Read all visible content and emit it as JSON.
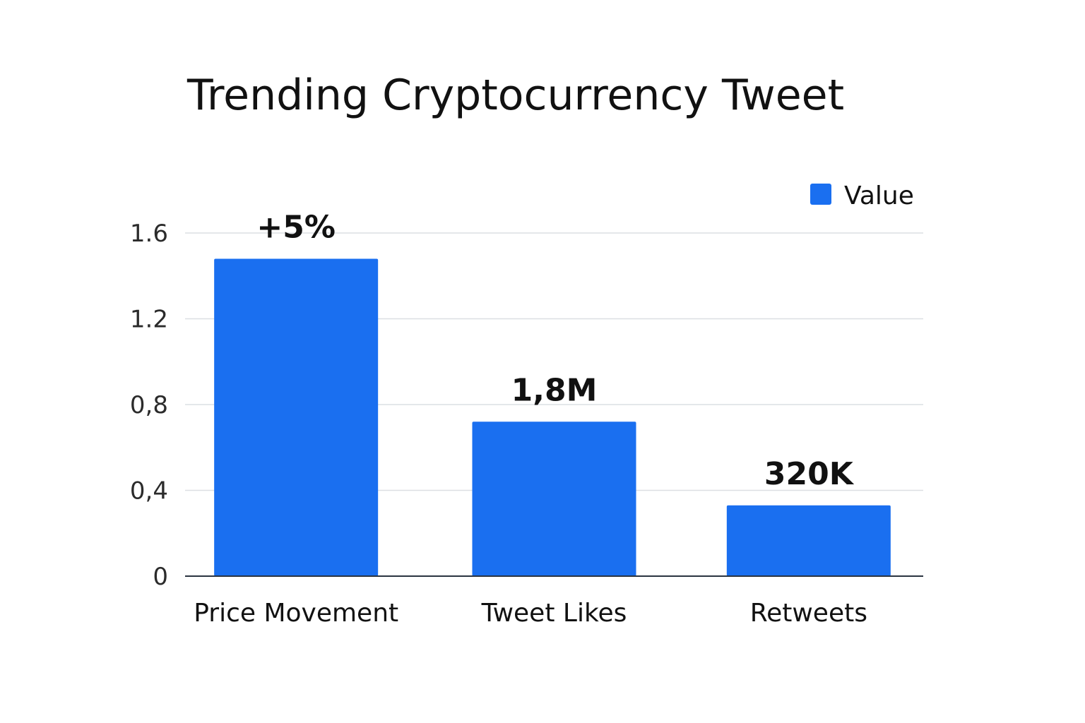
{
  "chart_data": {
    "type": "bar",
    "title": "Trending Cryptocurrency Tweet",
    "categories": [
      "Price Movement",
      "Tweet Likes",
      "Retweets"
    ],
    "series": [
      {
        "name": "Value",
        "values": [
          1.48,
          0.72,
          0.33
        ],
        "color": "#1a6ff0"
      }
    ],
    "data_labels": [
      "+5%",
      "1,8M",
      "320K"
    ],
    "ylim": [
      0,
      1.6
    ],
    "yticks": [
      0,
      0.4,
      0.8,
      1.2,
      1.6
    ],
    "ytick_labels": [
      "0",
      "0,4",
      "0,8",
      "1.2",
      "1.6"
    ],
    "xlabel": "",
    "ylabel": "",
    "grid": true,
    "legend_position": "top-right"
  }
}
